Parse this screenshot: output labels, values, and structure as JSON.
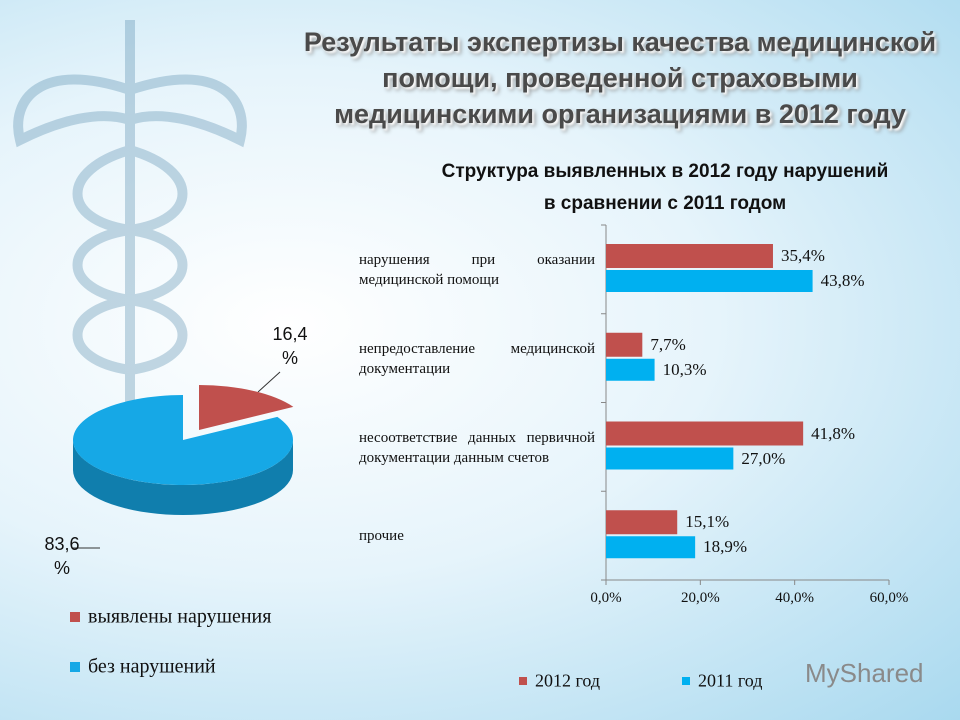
{
  "title": "Результаты экспертизы качества медицинской помощи, проведенной страховыми медицинскими организациями в 2012 году",
  "watermark": "MyShared",
  "chart_data": [
    {
      "type": "pie",
      "categories": [
        "выявлены нарушения",
        "без нарушений"
      ],
      "values": [
        16.4,
        83.6
      ],
      "value_labels": [
        "16,4 %",
        "83,6 %"
      ],
      "colors": [
        "#c0504d",
        "#16a8e6"
      ],
      "legend": "bottom"
    },
    {
      "type": "hbar",
      "title": "Структура выявленных в 2012 году нарушений в сравнении с 2011 годом",
      "categories": [
        "нарушения при оказании медицинской помощи",
        "непредоставление медицинской документации",
        "несоответствие данных первичной документации данным счетов",
        "прочие"
      ],
      "series": [
        {
          "name": "2012 год",
          "color": "#c0504d",
          "values": [
            35.4,
            7.7,
            41.8,
            15.1
          ],
          "value_labels": [
            "35,4%",
            "7,7%",
            "41,8%",
            "15,1%"
          ]
        },
        {
          "name": "2011 год",
          "color": "#00b0f0",
          "values": [
            43.8,
            10.3,
            27.0,
            18.9
          ],
          "value_labels": [
            "43,8%",
            "10,3%",
            "27,0%",
            "18,9%"
          ]
        }
      ],
      "xlim": [
        0,
        60
      ],
      "xticks": [
        {
          "value": 0,
          "label": "0,0%"
        },
        {
          "value": 20,
          "label": "20,0%"
        },
        {
          "value": 40,
          "label": "40,0%"
        },
        {
          "value": 60,
          "label": "60,0%"
        }
      ],
      "legend": "bottom"
    }
  ]
}
